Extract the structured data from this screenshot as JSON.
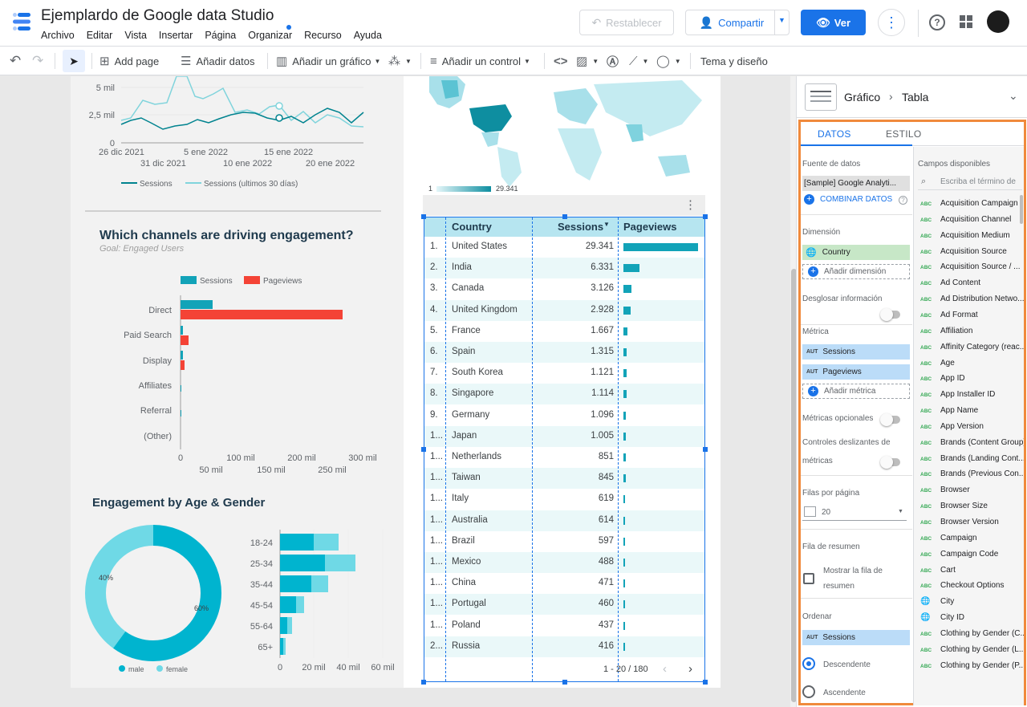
{
  "header": {
    "title": "Ejemplardo de Google data Studio",
    "menu": [
      "Archivo",
      "Editar",
      "Vista",
      "Insertar",
      "Página",
      "Organizar",
      "Recurso",
      "Ayuda"
    ],
    "reset_label": "Restablecer",
    "share_label": "Compartir",
    "view_label": "Ver"
  },
  "toolbar": {
    "add_page": "Add page",
    "add_data": "Añadir datos",
    "add_chart": "Añadir un gráfico",
    "add_control": "Añadir un control",
    "theme": "Tema y diseño"
  },
  "sessions_chart": {
    "y_ticks": [
      "5 mil",
      "2,5 mil",
      "0"
    ],
    "x_ticks_top": [
      "26 dic 2021",
      "5 ene 2022",
      "15 ene 2022"
    ],
    "x_ticks_bottom": [
      "31 dic 2021",
      "10 ene 2022",
      "20 ene 2022"
    ],
    "legend": [
      "Sessions",
      "Sessions (ultimos 30 días)"
    ],
    "colors": {
      "current": "#00838f",
      "previous": "#80d4dc"
    }
  },
  "channels_chart": {
    "title": "Which channels are driving engagement?",
    "subtitle": "Goal: Engaged Users",
    "legend": [
      "Sessions",
      "Pageviews"
    ],
    "x_ticks_top": [
      "0",
      "100 mil",
      "200 mil",
      "300 mil"
    ],
    "x_ticks_bottom": [
      "50 mil",
      "150 mil",
      "250 mil"
    ],
    "colors": {
      "sessions": "#12a3b8",
      "pageviews": "#f44336"
    }
  },
  "age_gender": {
    "title": "Engagement by Age & Gender",
    "donut_labels": [
      "40%",
      "60%"
    ],
    "legend": [
      "male",
      "female"
    ],
    "x_ticks_bottom": [
      "0",
      "20 mil",
      "40 mil",
      "60 mil"
    ],
    "colors": {
      "male": "#00b4cf",
      "female": "#6fd9e6"
    }
  },
  "map": {
    "legend_min": "1",
    "legend_max": "29.341"
  },
  "table": {
    "headers": [
      "Country",
      "Sessions",
      "Pageviews"
    ],
    "rows": [
      {
        "idx": "1.",
        "country": "United States",
        "sessions": "29.341"
      },
      {
        "idx": "2.",
        "country": "India",
        "sessions": "6.331"
      },
      {
        "idx": "3.",
        "country": "Canada",
        "sessions": "3.126"
      },
      {
        "idx": "4.",
        "country": "United Kingdom",
        "sessions": "2.928"
      },
      {
        "idx": "5.",
        "country": "France",
        "sessions": "1.667"
      },
      {
        "idx": "6.",
        "country": "Spain",
        "sessions": "1.315"
      },
      {
        "idx": "7.",
        "country": "South Korea",
        "sessions": "1.121"
      },
      {
        "idx": "8.",
        "country": "Singapore",
        "sessions": "1.114"
      },
      {
        "idx": "9.",
        "country": "Germany",
        "sessions": "1.096"
      },
      {
        "idx": "1...",
        "country": "Japan",
        "sessions": "1.005"
      },
      {
        "idx": "1...",
        "country": "Netherlands",
        "sessions": "851"
      },
      {
        "idx": "1...",
        "country": "Taiwan",
        "sessions": "845"
      },
      {
        "idx": "1...",
        "country": "Italy",
        "sessions": "619"
      },
      {
        "idx": "1...",
        "country": "Australia",
        "sessions": "614"
      },
      {
        "idx": "1...",
        "country": "Brazil",
        "sessions": "597"
      },
      {
        "idx": "1...",
        "country": "Mexico",
        "sessions": "488"
      },
      {
        "idx": "1...",
        "country": "China",
        "sessions": "471"
      },
      {
        "idx": "1...",
        "country": "Portugal",
        "sessions": "460"
      },
      {
        "idx": "1...",
        "country": "Poland",
        "sessions": "437"
      },
      {
        "idx": "2...",
        "country": "Russia",
        "sessions": "416"
      }
    ],
    "pagination": "1 - 20 / 180"
  },
  "panel": {
    "breadcrumb_chart": "Gráfico",
    "breadcrumb_type": "Tabla",
    "tab_data": "DATOS",
    "tab_style": "ESTILO",
    "data_source_title": "Fuente de datos",
    "data_source": "[Sample] Google Analyti...",
    "blend": "COMBINAR DATOS",
    "dimension_title": "Dimensión",
    "dimension": "Country",
    "add_dimension": "Añadir dimensión",
    "drilldown": "Desglosar información",
    "metric_title": "Métrica",
    "metric1": "Sessions",
    "metric2": "Pageviews",
    "add_metric": "Añadir métrica",
    "optional_metrics": "Métricas opcionales",
    "metric_sliders_1": "Controles deslizantes de",
    "metric_sliders_2": "métricas",
    "rows_per_page": "Filas por página",
    "rows_value": "20",
    "summary_row": "Fila de resumen",
    "show_summary_1": "Mostrar la fila de",
    "show_summary_2": "resumen",
    "sort_title": "Ordenar",
    "sort_field": "Sessions",
    "descending": "Descendente",
    "ascending": "Ascendente",
    "available_fields": "Campos disponibles",
    "search_placeholder": "Escriba el término de",
    "fields": [
      {
        "t": "ABC",
        "n": "Acquisition Campaign"
      },
      {
        "t": "ABC",
        "n": "Acquisition Channel"
      },
      {
        "t": "ABC",
        "n": "Acquisition Medium"
      },
      {
        "t": "ABC",
        "n": "Acquisition Source"
      },
      {
        "t": "ABC",
        "n": "Acquisition Source / ..."
      },
      {
        "t": "ABC",
        "n": "Ad Content"
      },
      {
        "t": "ABC",
        "n": "Ad Distribution Netwo..."
      },
      {
        "t": "ABC",
        "n": "Ad Format"
      },
      {
        "t": "ABC",
        "n": "Affiliation"
      },
      {
        "t": "ABC",
        "n": "Affinity Category (reac..."
      },
      {
        "t": "ABC",
        "n": "Age"
      },
      {
        "t": "ABC",
        "n": "App ID"
      },
      {
        "t": "ABC",
        "n": "App Installer ID"
      },
      {
        "t": "ABC",
        "n": "App Name"
      },
      {
        "t": "ABC",
        "n": "App Version"
      },
      {
        "t": "ABC",
        "n": "Brands (Content Group)"
      },
      {
        "t": "ABC",
        "n": "Brands (Landing Cont..."
      },
      {
        "t": "ABC",
        "n": "Brands (Previous Con..."
      },
      {
        "t": "ABC",
        "n": "Browser"
      },
      {
        "t": "ABC",
        "n": "Browser Size"
      },
      {
        "t": "ABC",
        "n": "Browser Version"
      },
      {
        "t": "ABC",
        "n": "Campaign"
      },
      {
        "t": "ABC",
        "n": "Campaign Code"
      },
      {
        "t": "ABC",
        "n": "Cart"
      },
      {
        "t": "ABC",
        "n": "Checkout Options"
      },
      {
        "t": "GEO",
        "n": "City"
      },
      {
        "t": "GEO",
        "n": "City ID"
      },
      {
        "t": "ABC",
        "n": "Clothing by Gender (C..."
      },
      {
        "t": "ABC",
        "n": "Clothing by Gender (L..."
      },
      {
        "t": "ABC",
        "n": "Clothing by Gender (P..."
      }
    ]
  }
}
